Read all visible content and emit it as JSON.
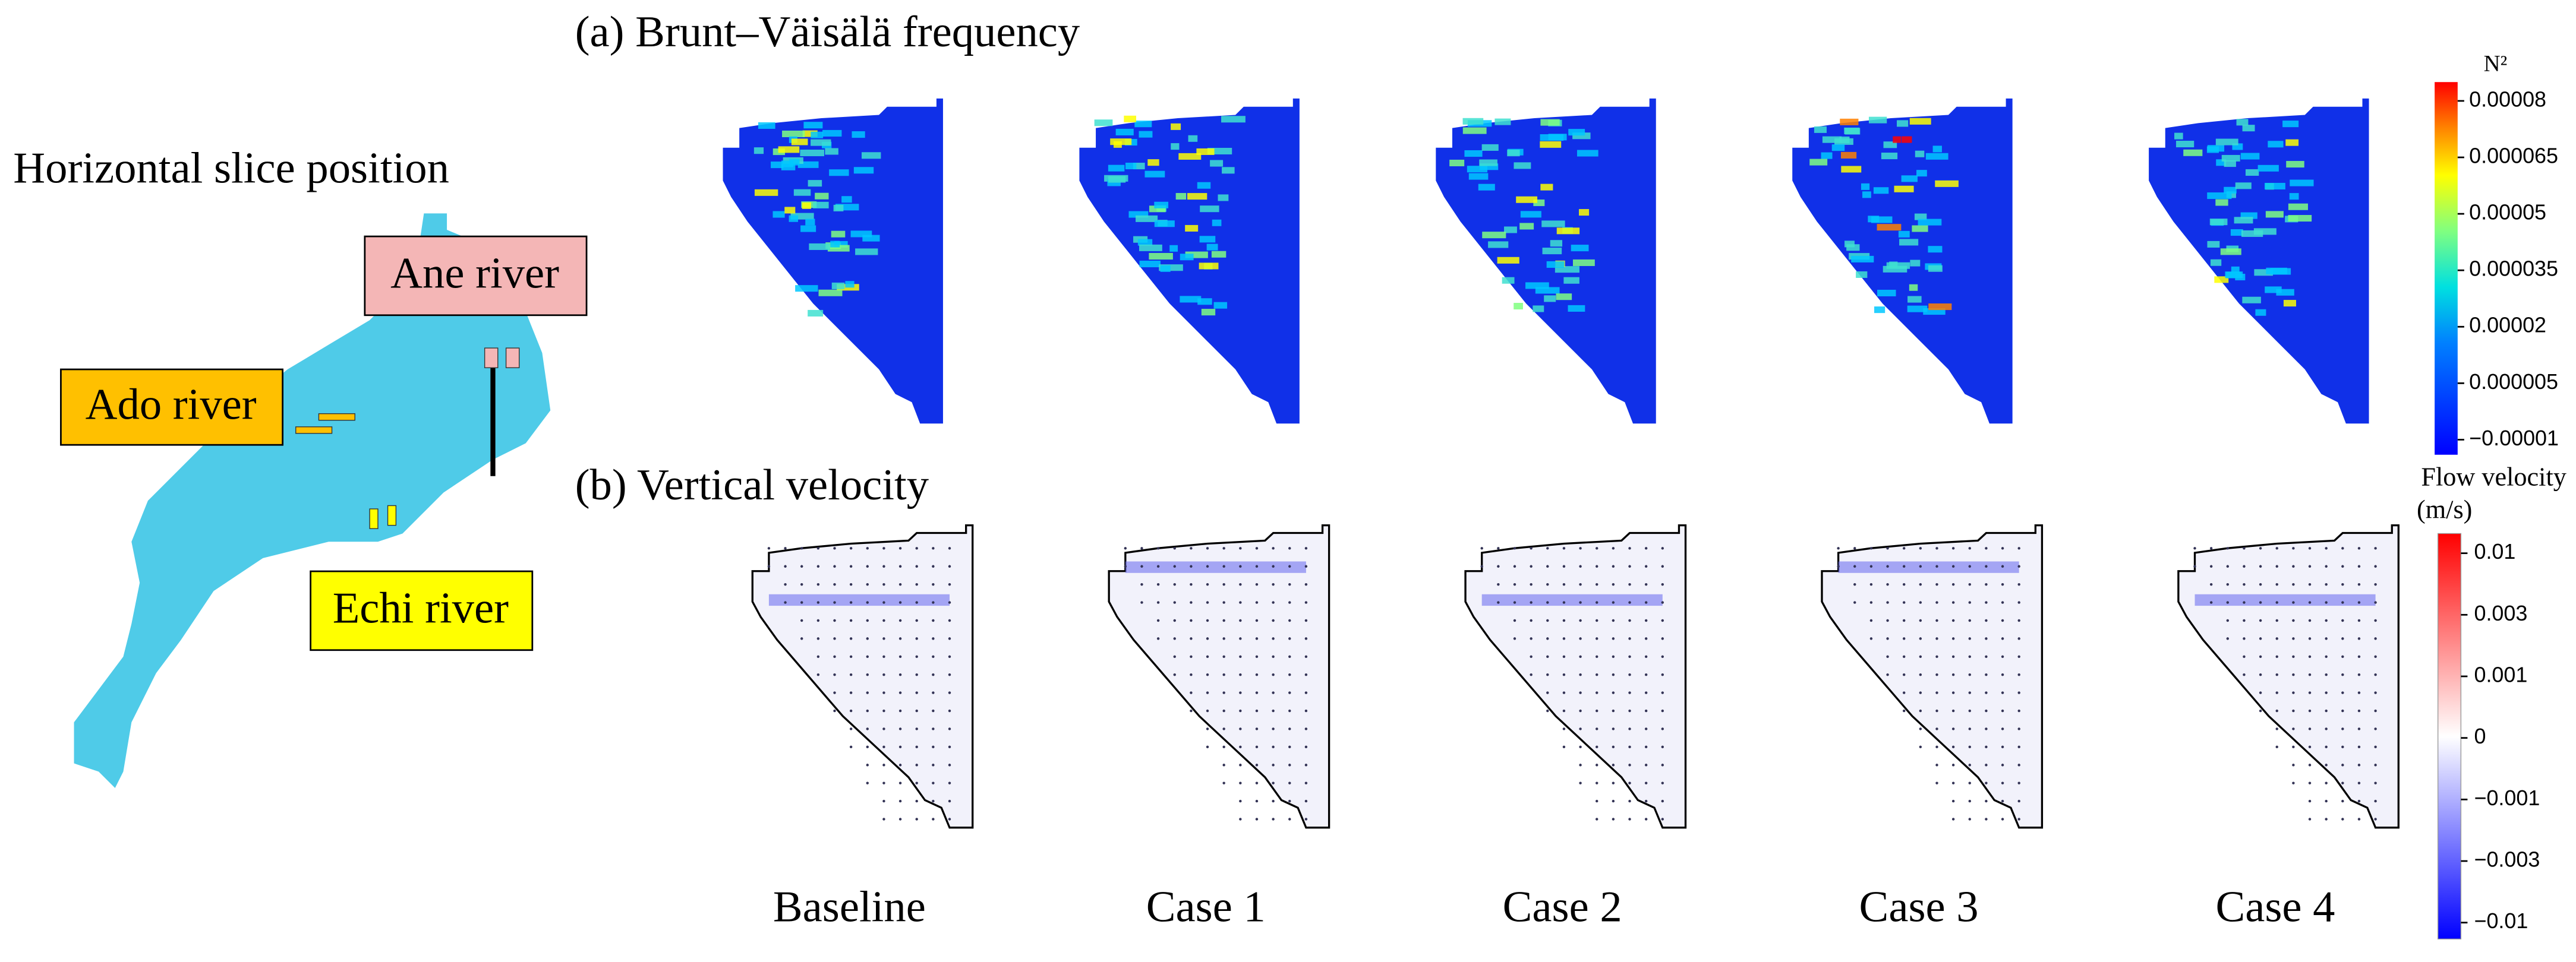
{
  "panel_a_title": "(a) Brunt–Väisälä frequency",
  "panel_b_title": "(b) Vertical velocity",
  "map": {
    "title": "Horizontal slice position",
    "rivers": [
      "Ane river",
      "Ado river",
      "Echi river"
    ]
  },
  "cases": [
    "Baseline",
    "Case 1",
    "Case 2",
    "Case 3",
    "Case 4"
  ],
  "colorbars": [
    {
      "title": "N²",
      "lim": [
        -1.4e-05,
        8.5e-05
      ],
      "ticks": [
        8e-05,
        6.5e-05,
        5e-05,
        3.5e-05,
        2e-05,
        5e-06,
        {
          "value": -1e-05,
          "label": "−0.00001"
        }
      ]
    },
    {
      "title": [
        "Flow velocity",
        "(m/s)"
      ],
      "ticks": [
        0.01,
        0.003,
        0.001,
        0,
        {
          "value": -0.001,
          "label": "−0.001"
        },
        {
          "value": -0.003,
          "label": "−0.003"
        },
        {
          "value": -0.01,
          "label": "−0.01"
        }
      ]
    }
  ]
}
